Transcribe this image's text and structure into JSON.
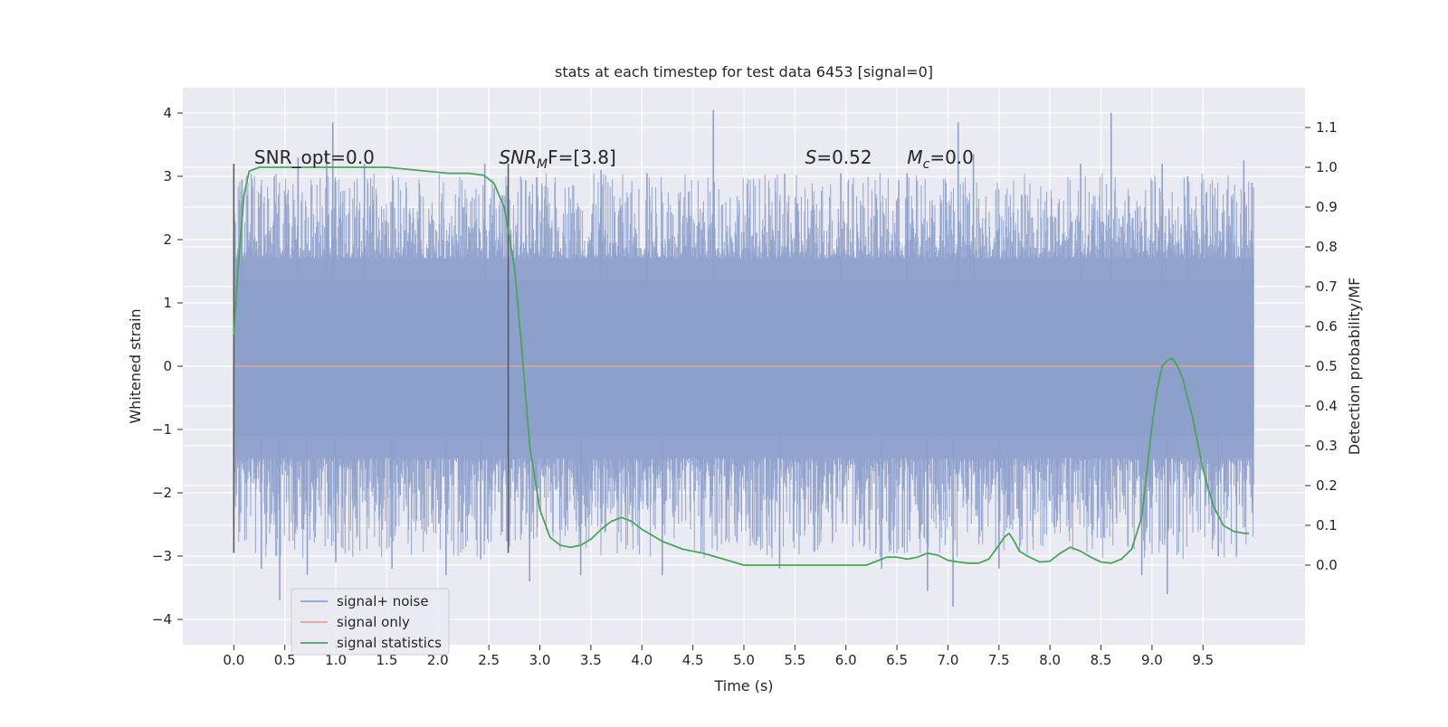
{
  "chart_data": {
    "type": "line",
    "title": "stats at each timestep for test data 6453 [signal=0]",
    "xlabel": "Time (s)",
    "ylabel_left": "Whitened strain",
    "ylabel_right": "Detection probability/MF",
    "xlim": [
      -0.5,
      10.5
    ],
    "ylim_left": [
      -4.4,
      4.4
    ],
    "ylim_right": [
      -0.2,
      1.2
    ],
    "x_ticks": [
      0.0,
      0.5,
      1.0,
      1.5,
      2.0,
      2.5,
      3.0,
      3.5,
      4.0,
      4.5,
      5.0,
      5.5,
      6.0,
      6.5,
      7.0,
      7.5,
      8.0,
      8.5,
      9.0,
      9.5
    ],
    "x_tick_labels": [
      "0.0",
      "0.5",
      "1.0",
      "1.5",
      "2.0",
      "2.5",
      "3.0",
      "3.5",
      "4.0",
      "4.5",
      "5.0",
      "5.5",
      "6.0",
      "6.5",
      "7.0",
      "7.5",
      "8.0",
      "8.5",
      "9.0",
      "9.5"
    ],
    "y_left_ticks": [
      -4,
      -3,
      -2,
      -1,
      0,
      1,
      2,
      3,
      4
    ],
    "y_left_tick_labels": [
      "−4",
      "−3",
      "−2",
      "−1",
      "0",
      "1",
      "2",
      "3",
      "4"
    ],
    "y_right_ticks": [
      0.0,
      0.1,
      0.2,
      0.3,
      0.4,
      0.5,
      0.6,
      0.7,
      0.8,
      0.9,
      1.0,
      1.1
    ],
    "y_right_tick_labels": [
      "0.0",
      "0.1",
      "0.2",
      "0.3",
      "0.4",
      "0.5",
      "0.6",
      "0.7",
      "0.8",
      "0.9",
      "1.0",
      "1.1"
    ],
    "grid": true,
    "legend_position": "lower-left",
    "series": [
      {
        "name": "signal+ noise",
        "axis": "left",
        "color": "#8da0cb",
        "x_range": [
          0.0,
          10.0
        ],
        "band_min_range": [
          -3.7,
          -2.7
        ],
        "band_max_range": [
          2.7,
          4.05
        ],
        "dense_band": [
          -1.1,
          1.35
        ],
        "spikes_high": [
          [
            0.03,
            1.65
          ],
          [
            0.08,
            2.95
          ],
          [
            0.63,
            3.3
          ],
          [
            0.91,
            3.4
          ],
          [
            0.97,
            3.85
          ],
          [
            1.28,
            3.2
          ],
          [
            2.46,
            3.2
          ],
          [
            3.6,
            3.1
          ],
          [
            4.05,
            3.05
          ],
          [
            4.7,
            4.05
          ],
          [
            5.95,
            3.05
          ],
          [
            6.6,
            3.05
          ],
          [
            7.1,
            3.85
          ],
          [
            7.25,
            3.35
          ],
          [
            8.3,
            3.2
          ],
          [
            8.6,
            4.0
          ],
          [
            9.1,
            3.2
          ],
          [
            9.35,
            3.0
          ],
          [
            9.9,
            3.25
          ],
          [
            9.98,
            2.9
          ]
        ],
        "spikes_low": [
          [
            0.0,
            -2.55
          ],
          [
            0.27,
            -3.2
          ],
          [
            0.45,
            -3.7
          ],
          [
            0.72,
            -3.3
          ],
          [
            1.0,
            -3.1
          ],
          [
            1.55,
            -3.2
          ],
          [
            2.08,
            -3.3
          ],
          [
            2.42,
            -3.05
          ],
          [
            2.9,
            -3.4
          ],
          [
            3.4,
            -3.3
          ],
          [
            4.2,
            -3.3
          ],
          [
            5.35,
            -3.2
          ],
          [
            6.35,
            -3.2
          ],
          [
            6.8,
            -3.55
          ],
          [
            7.05,
            -3.8
          ],
          [
            7.5,
            -3.2
          ],
          [
            8.9,
            -3.3
          ],
          [
            9.15,
            -3.6
          ],
          [
            9.65,
            -3.0
          ]
        ]
      },
      {
        "name": "signal only",
        "axis": "left",
        "color": "#e6a58c",
        "x": [
          0.0,
          10.0
        ],
        "y": [
          0.0,
          0.0
        ]
      },
      {
        "name": "signal statistics",
        "axis": "right",
        "color": "#4aa55a",
        "x": [
          0.0,
          0.04,
          0.1,
          0.15,
          0.25,
          0.5,
          1.0,
          1.5,
          1.9,
          2.1,
          2.3,
          2.45,
          2.55,
          2.65,
          2.75,
          2.82,
          2.9,
          3.0,
          3.1,
          3.2,
          3.3,
          3.4,
          3.5,
          3.6,
          3.7,
          3.8,
          3.9,
          4.0,
          4.2,
          4.4,
          4.6,
          4.8,
          5.0,
          5.3,
          5.5,
          5.7,
          6.0,
          6.2,
          6.3,
          6.4,
          6.5,
          6.6,
          6.7,
          6.8,
          6.9,
          7.0,
          7.1,
          7.2,
          7.3,
          7.4,
          7.5,
          7.55,
          7.6,
          7.65,
          7.7,
          7.8,
          7.9,
          8.0,
          8.1,
          8.2,
          8.3,
          8.4,
          8.5,
          8.6,
          8.7,
          8.8,
          8.9,
          9.0,
          9.05,
          9.1,
          9.15,
          9.2,
          9.25,
          9.3,
          9.4,
          9.5,
          9.6,
          9.7,
          9.8,
          9.9,
          9.95
        ],
        "y": [
          0.58,
          0.74,
          0.93,
          0.99,
          1.0,
          1.0,
          1.0,
          1.0,
          0.99,
          0.985,
          0.985,
          0.98,
          0.96,
          0.9,
          0.75,
          0.55,
          0.3,
          0.14,
          0.07,
          0.05,
          0.045,
          0.05,
          0.065,
          0.09,
          0.11,
          0.12,
          0.11,
          0.09,
          0.06,
          0.04,
          0.03,
          0.015,
          0.0,
          0.0,
          0.0,
          0.0,
          0.0,
          0.0,
          0.01,
          0.02,
          0.02,
          0.015,
          0.02,
          0.03,
          0.025,
          0.012,
          0.008,
          0.005,
          0.005,
          0.015,
          0.05,
          0.07,
          0.08,
          0.06,
          0.035,
          0.02,
          0.008,
          0.01,
          0.03,
          0.045,
          0.035,
          0.02,
          0.008,
          0.005,
          0.015,
          0.04,
          0.12,
          0.35,
          0.44,
          0.5,
          0.515,
          0.52,
          0.5,
          0.47,
          0.37,
          0.24,
          0.15,
          0.1,
          0.085,
          0.08,
          0.08
        ]
      }
    ],
    "vlines": [
      {
        "x": 0.0,
        "y_range": [
          -2.95,
          3.2
        ],
        "color": "#555555"
      },
      {
        "x": 2.69,
        "y_range": [
          -2.95,
          3.2
        ],
        "color": "#555555"
      }
    ],
    "annotations": [
      {
        "id": "snr-opt",
        "text": "SNR_opt=0.0",
        "x": 0.2,
        "y": 3.2
      },
      {
        "id": "snr-mf",
        "text": "SNR_MF=[3.8]",
        "x": 2.6,
        "y": 3.2,
        "display": {
          "prefix": "SNR",
          "sub": "M",
          "suffix": "F=[3.8]",
          "italic": "prefix-sub"
        }
      },
      {
        "id": "s-value",
        "text": "S=0.52",
        "x": 5.6,
        "y": 3.2,
        "display": {
          "prefix": "S",
          "sub": "",
          "suffix": "=0.52",
          "italic": "prefix"
        }
      },
      {
        "id": "mc-value",
        "text": "M_c=0.0",
        "x": 6.6,
        "y": 3.2,
        "display": {
          "prefix": "M",
          "sub": "c",
          "suffix": "=0.0",
          "italic": "prefix-sub"
        }
      }
    ]
  }
}
